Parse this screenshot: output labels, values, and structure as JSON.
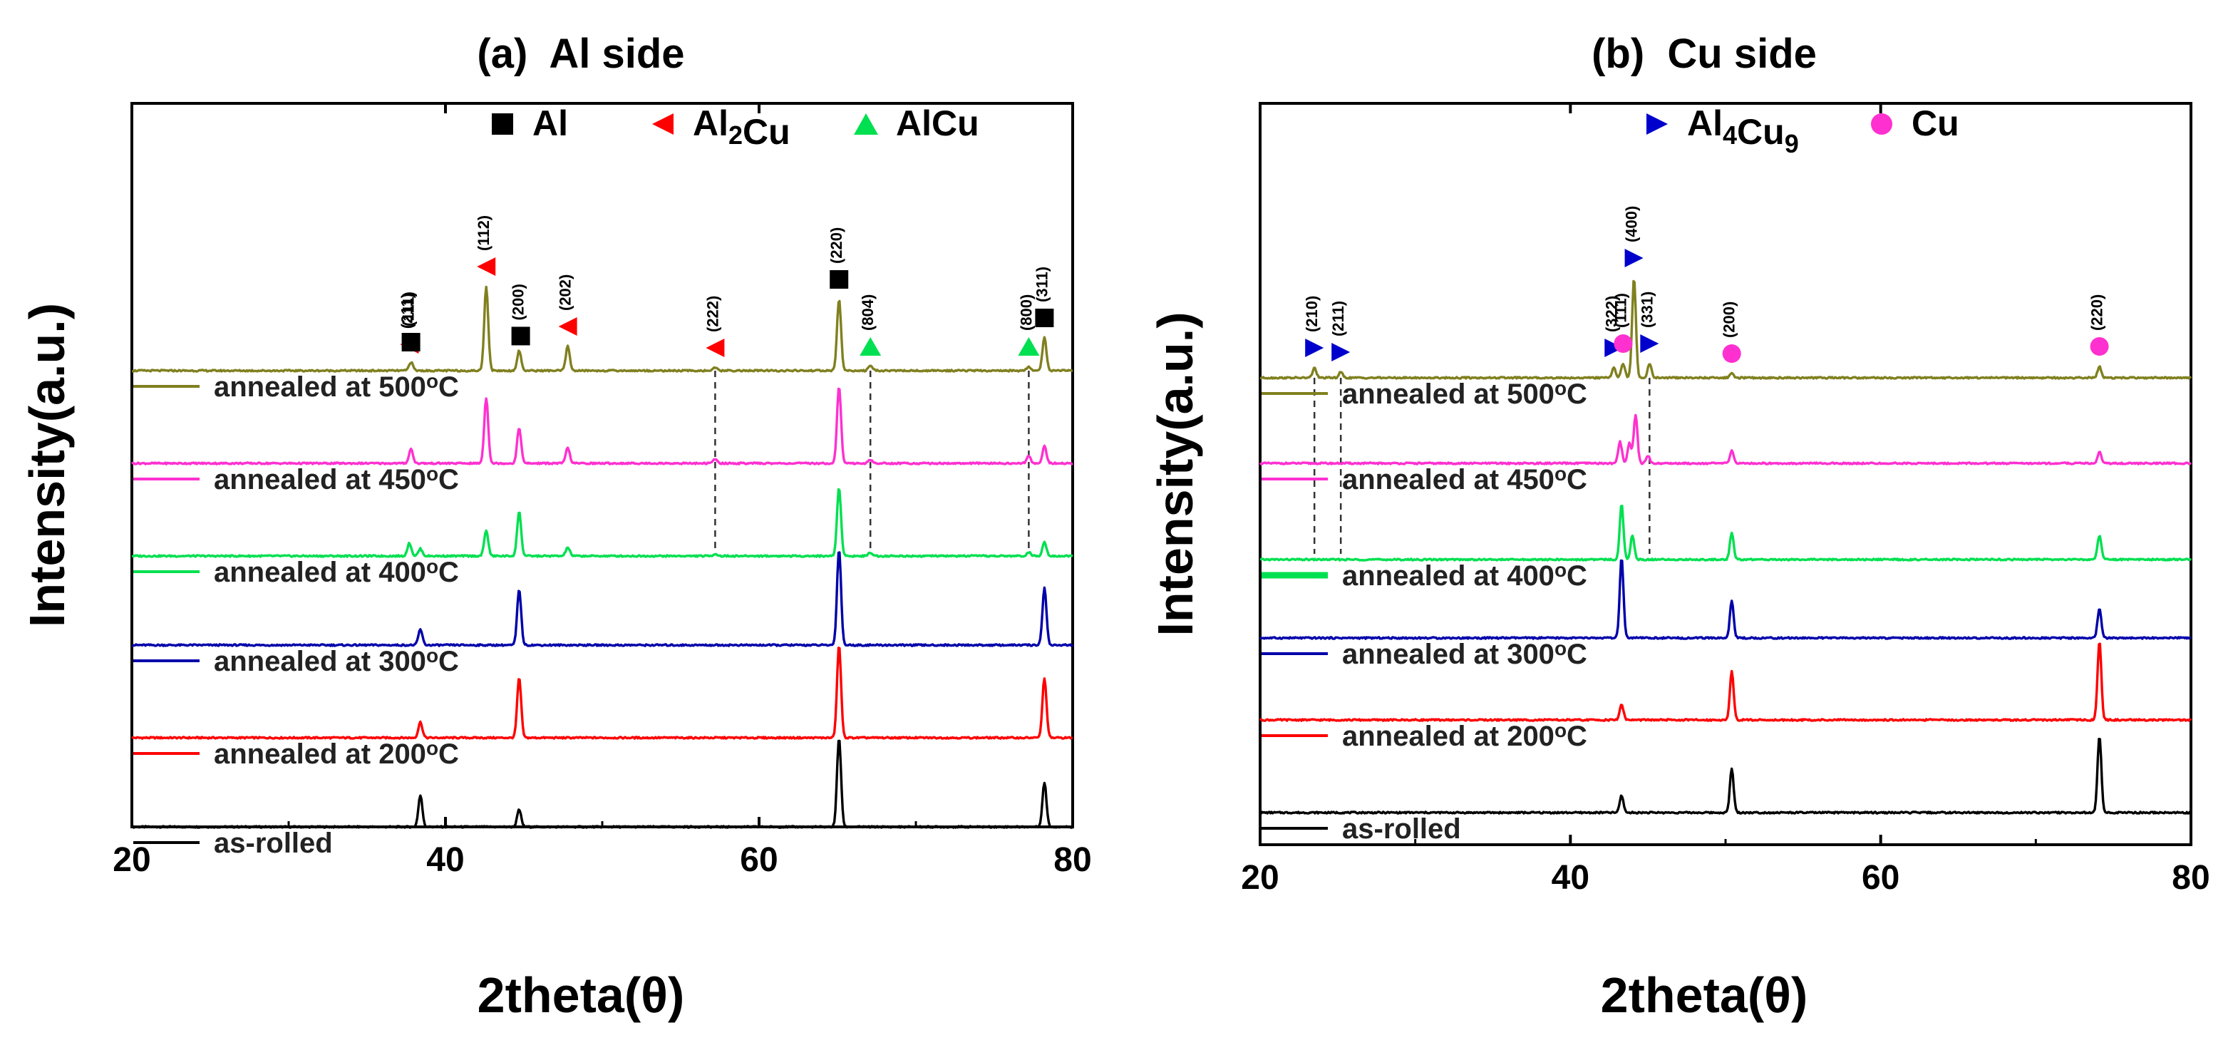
{
  "chart_data": [
    {
      "type": "line",
      "title": "(a)  Al side",
      "xlabel": "2theta(θ)",
      "ylabel": "Intensity(a.u.)",
      "xlim": [
        20,
        80
      ],
      "xticks": [
        20,
        40,
        60,
        80
      ],
      "yticks": "none",
      "grid": false,
      "legend_position": "top-right",
      "legend": [
        {
          "label": "Al",
          "marker": "square",
          "color": "#000000"
        },
        {
          "label": "Al2Cu",
          "marker": "triangle-left",
          "color": "#ff0000"
        },
        {
          "label": "AlCu",
          "marker": "triangle-up",
          "color": "#00e050"
        }
      ],
      "series": [
        {
          "name": "as-rolled",
          "color": "#000000",
          "peaks": [
            {
              "x": 38.4,
              "h": 44
            },
            {
              "x": 44.7,
              "h": 24
            },
            {
              "x": 65.1,
              "h": 125
            },
            {
              "x": 78.2,
              "h": 62
            }
          ]
        },
        {
          "name": "annealed at 200°C",
          "color": "#ff0000",
          "peaks": [
            {
              "x": 38.4,
              "h": 22
            },
            {
              "x": 44.7,
              "h": 84
            },
            {
              "x": 65.1,
              "h": 130
            },
            {
              "x": 78.2,
              "h": 84
            }
          ]
        },
        {
          "name": "annealed at 300°C",
          "color": "#0000aa",
          "peaks": [
            {
              "x": 38.4,
              "h": 22
            },
            {
              "x": 44.7,
              "h": 78
            },
            {
              "x": 65.1,
              "h": 135
            },
            {
              "x": 78.2,
              "h": 80
            }
          ]
        },
        {
          "name": "annealed at 400°C",
          "color": "#00e050",
          "peaks": [
            {
              "x": 37.7,
              "h": 18
            },
            {
              "x": 38.4,
              "h": 10
            },
            {
              "x": 42.6,
              "h": 36
            },
            {
              "x": 44.7,
              "h": 62
            },
            {
              "x": 47.8,
              "h": 12
            },
            {
              "x": 57.2,
              "h": 3
            },
            {
              "x": 65.1,
              "h": 96
            },
            {
              "x": 67.1,
              "h": 5
            },
            {
              "x": 77.2,
              "h": 5
            },
            {
              "x": 78.2,
              "h": 20
            }
          ]
        },
        {
          "name": "annealed at 450°C",
          "color": "#ff30d0",
          "peaks": [
            {
              "x": 37.8,
              "h": 20
            },
            {
              "x": 42.6,
              "h": 92
            },
            {
              "x": 44.7,
              "h": 50
            },
            {
              "x": 47.8,
              "h": 22
            },
            {
              "x": 57.2,
              "h": 6
            },
            {
              "x": 65.1,
              "h": 108
            },
            {
              "x": 67.1,
              "h": 5
            },
            {
              "x": 77.2,
              "h": 10
            },
            {
              "x": 78.2,
              "h": 24
            }
          ]
        },
        {
          "name": "annealed at 500°C",
          "color": "#808020",
          "peaks": [
            {
              "x": 37.8,
              "h": 12
            },
            {
              "x": 42.6,
              "h": 118
            },
            {
              "x": 44.7,
              "h": 28
            },
            {
              "x": 47.8,
              "h": 34
            },
            {
              "x": 57.2,
              "h": 4
            },
            {
              "x": 65.1,
              "h": 100
            },
            {
              "x": 67.1,
              "h": 6
            },
            {
              "x": 77.2,
              "h": 6
            },
            {
              "x": 78.2,
              "h": 46
            }
          ]
        }
      ],
      "phase_markers": [
        {
          "x": 37.7,
          "marker": "triangle-left",
          "color": "#ff0000",
          "label": "(211)"
        },
        {
          "x": 37.8,
          "marker": "square",
          "color": "#000000",
          "label": "(111)"
        },
        {
          "x": 42.6,
          "marker": "triangle-left",
          "color": "#ff0000",
          "label": "(112)"
        },
        {
          "x": 44.8,
          "marker": "square",
          "color": "#000000",
          "label": "(200)"
        },
        {
          "x": 47.8,
          "marker": "triangle-left",
          "color": "#ff0000",
          "label": "(202)"
        },
        {
          "x": 57.2,
          "marker": "triangle-left",
          "color": "#ff0000",
          "label": "(222)"
        },
        {
          "x": 65.1,
          "marker": "square",
          "color": "#000000",
          "label": "(220)"
        },
        {
          "x": 67.1,
          "marker": "triangle-up",
          "color": "#00e050",
          "label": "(804)"
        },
        {
          "x": 77.2,
          "marker": "triangle-up",
          "color": "#00e050",
          "label": "(800)"
        },
        {
          "x": 78.2,
          "marker": "square",
          "color": "#000000",
          "label": "(311)"
        }
      ],
      "guide_lines": [
        57.2,
        67.1,
        77.2
      ]
    },
    {
      "type": "line",
      "title": "(b)  Cu side",
      "xlabel": "2theta(θ)",
      "ylabel": "Intensity(a.u.)",
      "xlim": [
        20,
        80
      ],
      "xticks": [
        20,
        40,
        60,
        80
      ],
      "yticks": "none",
      "grid": false,
      "legend_position": "top-right",
      "legend": [
        {
          "label": "Al4Cu9",
          "marker": "triangle-right",
          "color": "#0000cc"
        },
        {
          "label": "Cu",
          "marker": "circle",
          "color": "#ff30d0"
        }
      ],
      "series": [
        {
          "name": "as-rolled",
          "color": "#000000",
          "peaks": [
            {
              "x": 43.3,
              "h": 24
            },
            {
              "x": 50.4,
              "h": 62
            },
            {
              "x": 74.1,
              "h": 108
            }
          ]
        },
        {
          "name": "annealed at 200°C",
          "color": "#ff0000",
          "peaks": [
            {
              "x": 43.3,
              "h": 22
            },
            {
              "x": 50.4,
              "h": 68
            },
            {
              "x": 74.1,
              "h": 110
            }
          ]
        },
        {
          "name": "annealed at 300°C",
          "color": "#0000aa",
          "peaks": [
            {
              "x": 43.3,
              "h": 112
            },
            {
              "x": 50.4,
              "h": 52
            },
            {
              "x": 74.1,
              "h": 42
            }
          ]
        },
        {
          "name": "annealed at 400°C",
          "color": "#00e050",
          "peaks": [
            {
              "x": 43.3,
              "h": 78
            },
            {
              "x": 44.0,
              "h": 34
            },
            {
              "x": 50.4,
              "h": 38
            },
            {
              "x": 74.1,
              "h": 34
            }
          ]
        },
        {
          "name": "annealed at 450°C",
          "color": "#ff30d0",
          "peaks": [
            {
              "x": 43.2,
              "h": 30
            },
            {
              "x": 43.8,
              "h": 28
            },
            {
              "x": 44.2,
              "h": 68
            },
            {
              "x": 45.0,
              "h": 10
            },
            {
              "x": 50.4,
              "h": 18
            },
            {
              "x": 74.1,
              "h": 16
            }
          ]
        },
        {
          "name": "annealed at 500°C",
          "color": "#808020",
          "peaks": [
            {
              "x": 23.5,
              "h": 14
            },
            {
              "x": 25.2,
              "h": 8
            },
            {
              "x": 42.8,
              "h": 14
            },
            {
              "x": 43.4,
              "h": 20
            },
            {
              "x": 44.1,
              "h": 140
            },
            {
              "x": 45.1,
              "h": 20
            },
            {
              "x": 50.4,
              "h": 6
            },
            {
              "x": 74.1,
              "h": 16
            }
          ]
        }
      ],
      "phase_markers": [
        {
          "x": 23.5,
          "marker": "triangle-right",
          "color": "#0000cc",
          "label": "(210)"
        },
        {
          "x": 25.2,
          "marker": "triangle-right",
          "color": "#0000cc",
          "label": "(211)"
        },
        {
          "x": 42.8,
          "marker": "triangle-right",
          "color": "#0000cc",
          "label": "(322)"
        },
        {
          "x": 43.4,
          "marker": "circle",
          "color": "#ff30d0",
          "label": "(111)"
        },
        {
          "x": 44.1,
          "marker": "triangle-right",
          "color": "#0000cc",
          "label": "(400)"
        },
        {
          "x": 45.1,
          "marker": "triangle-right",
          "color": "#0000cc",
          "label": "(331)"
        },
        {
          "x": 50.4,
          "marker": "circle",
          "color": "#ff30d0",
          "label": "(200)"
        },
        {
          "x": 74.1,
          "marker": "circle",
          "color": "#ff30d0",
          "label": "(220)"
        }
      ],
      "guide_lines": [
        23.5,
        25.2,
        45.1
      ]
    }
  ]
}
